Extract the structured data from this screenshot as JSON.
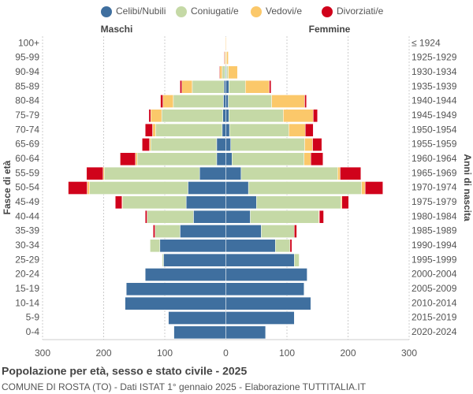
{
  "chart_data": {
    "type": "pyramid",
    "title": "Popolazione per età, sesso e stato civile - 2025",
    "subtitle": "COMUNE DI ROSTA (TO) - Dati ISTAT 1° gennaio 2025 - Elaborazione TUTTITALIA.IT",
    "y_label": "Fasce di età",
    "y2_label": "Anni di nascita",
    "sides": {
      "male": "Maschi",
      "female": "Femmine"
    },
    "categories": [
      "100+",
      "95-99",
      "90-94",
      "85-89",
      "80-84",
      "75-79",
      "70-74",
      "65-69",
      "60-64",
      "55-59",
      "50-54",
      "45-49",
      "40-44",
      "35-39",
      "30-34",
      "25-29",
      "20-24",
      "15-19",
      "10-14",
      "5-9",
      "0-4"
    ],
    "birth_years": [
      "≤ 1924",
      "1925-1929",
      "1930-1934",
      "1935-1939",
      "1940-1944",
      "1945-1949",
      "1950-1954",
      "1955-1959",
      "1960-1964",
      "1965-1969",
      "1970-1974",
      "1975-1979",
      "1980-1984",
      "1985-1989",
      "1990-1994",
      "1995-1999",
      "2000-2004",
      "2005-2009",
      "2010-2014",
      "2015-2019",
      "2020-2024"
    ],
    "series": [
      {
        "name": "Celibi/Nubili",
        "color": "#3f6f9f",
        "male": [
          0,
          0,
          1,
          3,
          4,
          5,
          6,
          15,
          15,
          43,
          62,
          65,
          53,
          75,
          108,
          102,
          132,
          163,
          165,
          94,
          85
        ],
        "female": [
          0,
          0,
          1,
          5,
          4,
          5,
          6,
          8,
          10,
          25,
          37,
          50,
          40,
          58,
          81,
          112,
          133,
          128,
          139,
          112,
          65
        ]
      },
      {
        "name": "Coniugati/e",
        "color": "#c5d9a6",
        "male": [
          0,
          0,
          5,
          52,
          82,
          100,
          109,
          108,
          130,
          156,
          161,
          104,
          76,
          41,
          16,
          2,
          0,
          0,
          0,
          0,
          0
        ],
        "female": [
          0,
          1,
          3,
          27,
          71,
          89,
          97,
          121,
          118,
          158,
          185,
          138,
          112,
          54,
          24,
          8,
          0,
          0,
          0,
          0,
          0
        ]
      },
      {
        "name": "Vedovi/e",
        "color": "#fbc86a",
        "male": [
          1,
          2,
          4,
          17,
          17,
          18,
          5,
          2,
          3,
          2,
          4,
          1,
          0,
          0,
          0,
          0,
          0,
          0,
          0,
          0,
          0
        ],
        "female": [
          1,
          3,
          15,
          39,
          54,
          49,
          27,
          13,
          11,
          4,
          6,
          2,
          1,
          0,
          0,
          0,
          0,
          0,
          0,
          0,
          0
        ]
      },
      {
        "name": "Divorziati/e",
        "color": "#d0021b",
        "male": [
          0,
          1,
          1,
          3,
          4,
          3,
          12,
          12,
          25,
          27,
          31,
          11,
          3,
          3,
          0,
          0,
          0,
          0,
          0,
          0,
          0
        ],
        "female": [
          0,
          0,
          0,
          3,
          3,
          7,
          13,
          15,
          20,
          34,
          29,
          11,
          7,
          4,
          3,
          0,
          0,
          0,
          0,
          0,
          0
        ]
      }
    ],
    "xlim": [
      -300,
      300
    ],
    "xticks": [
      {
        "value": -300,
        "label": "300"
      },
      {
        "value": -200,
        "label": "200"
      },
      {
        "value": -100,
        "label": "100"
      },
      0,
      100,
      200,
      300
    ],
    "grid": true
  }
}
